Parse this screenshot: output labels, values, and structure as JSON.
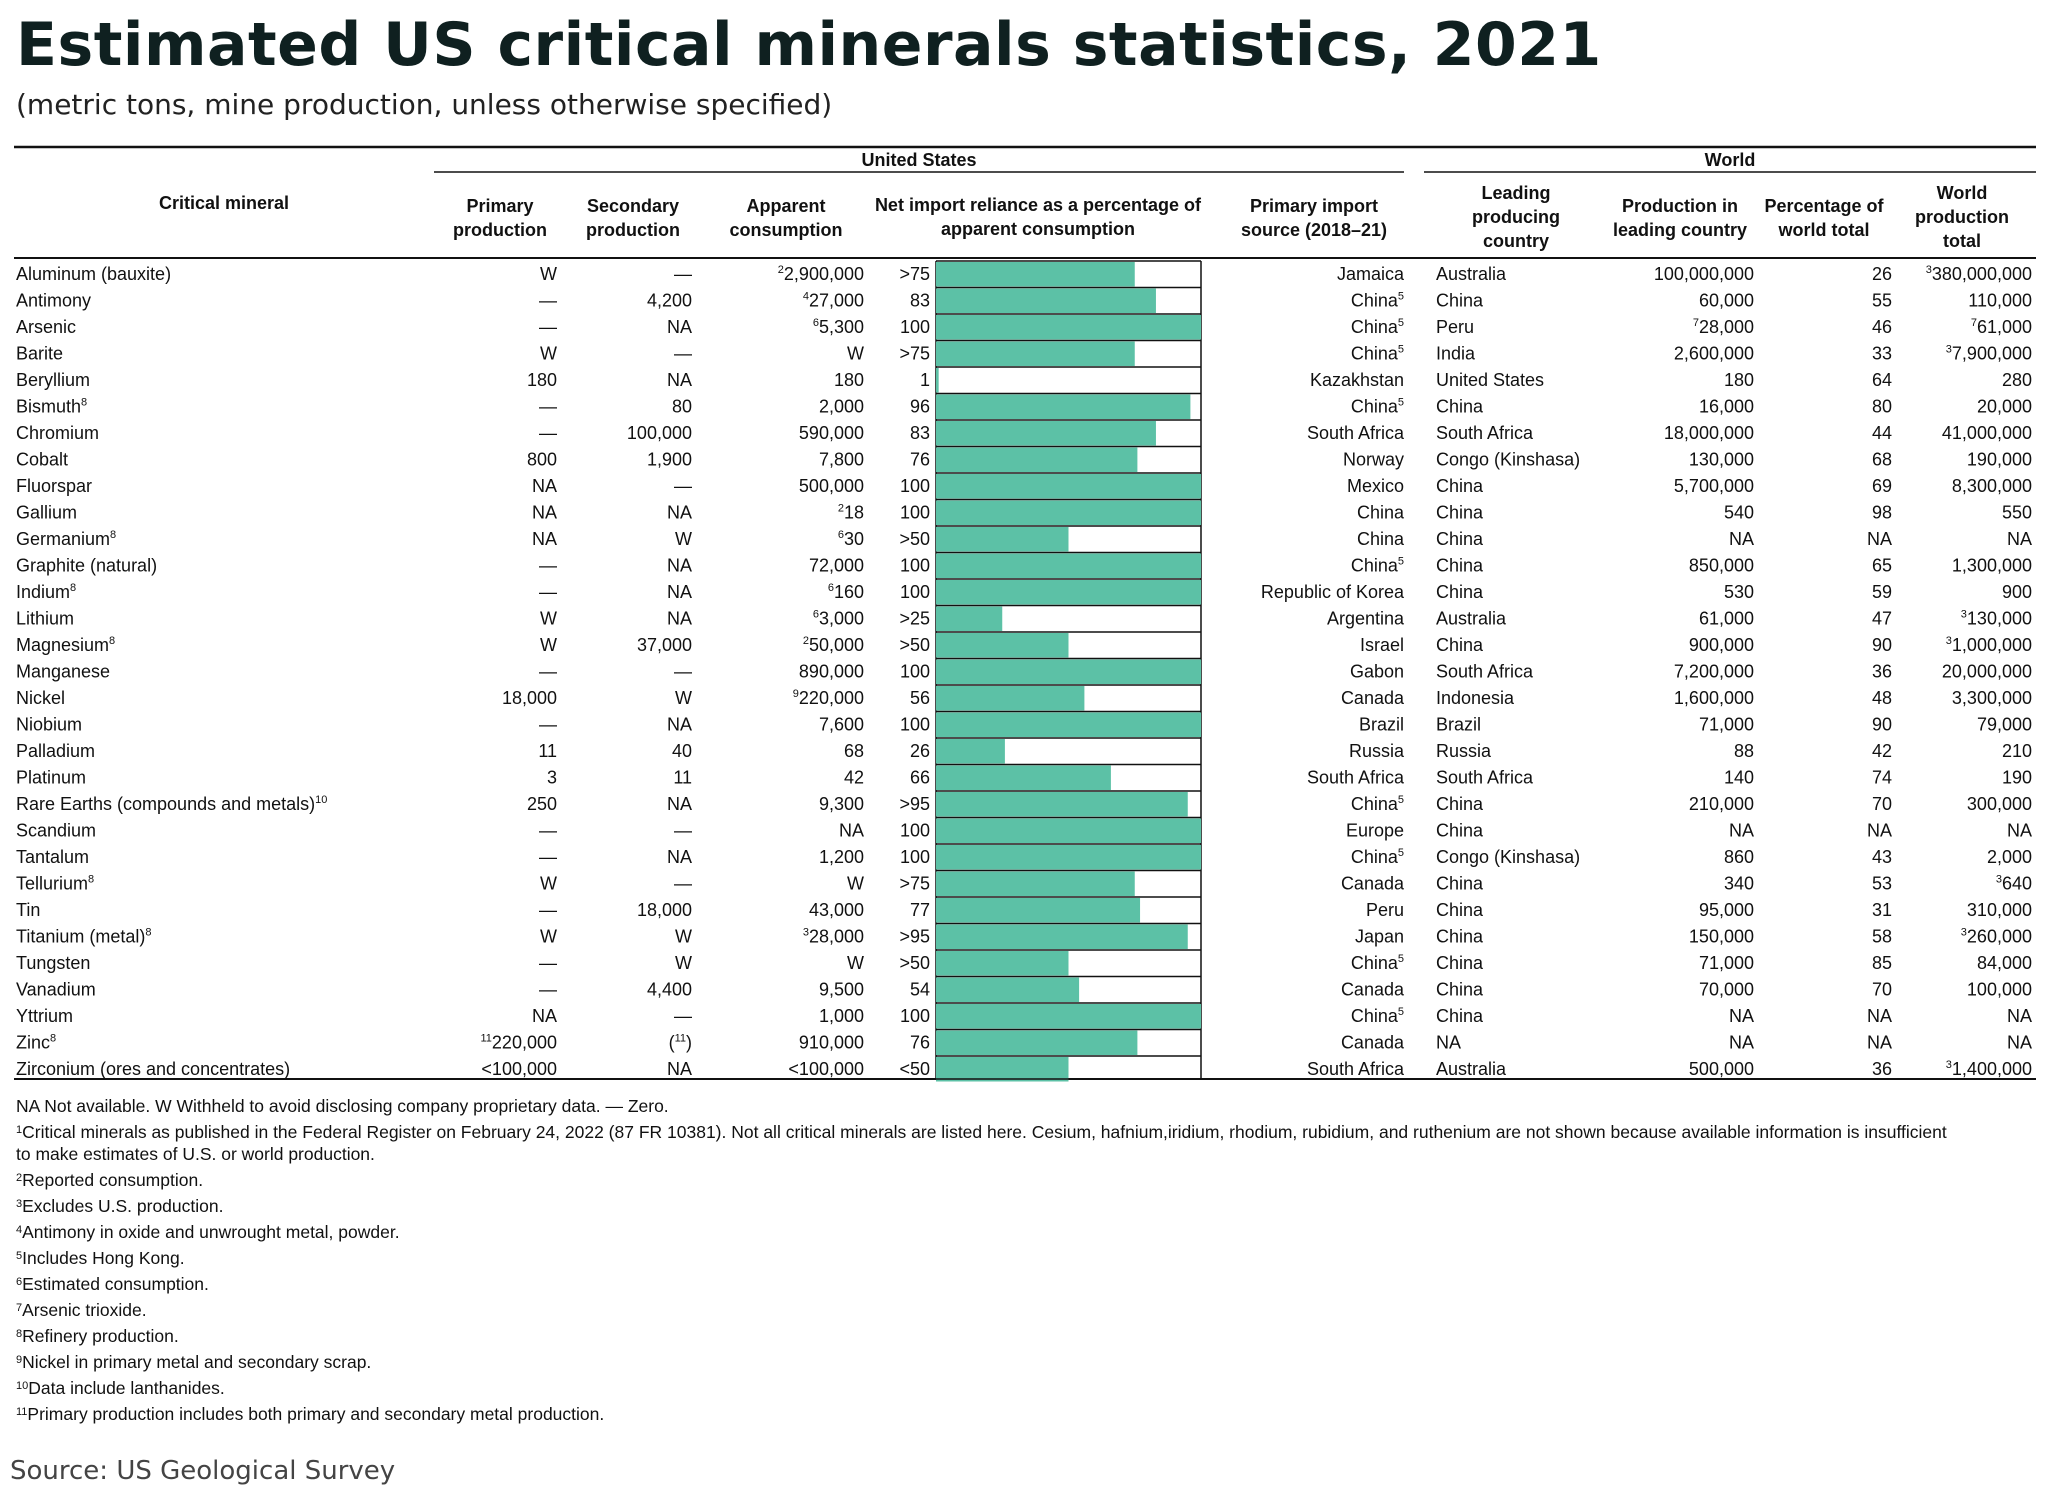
{
  "title": "Estimated US critical minerals statistics, 2021",
  "subtitle": "(metric tons, mine production, unless otherwise specified)",
  "source": "Source: US Geological Survey",
  "colors": {
    "bar": "#5cc1a6",
    "text": "#111111",
    "title": "#0f2020"
  },
  "headers": {
    "group_us": "United States",
    "group_world": "World",
    "mineral": "Critical mineral",
    "primary": [
      "Primary",
      "production"
    ],
    "secondary": [
      "Secondary",
      "production"
    ],
    "apparent": [
      "Apparent",
      "consumption"
    ],
    "nir": [
      "Net import reliance as a percentage of",
      "apparent consumption"
    ],
    "source": [
      "Primary import",
      "source  (2018–21)"
    ],
    "leading": [
      "Leading",
      "producing",
      "country"
    ],
    "prodlead": [
      "Production in",
      "leading country"
    ],
    "pct": [
      "Percentage of",
      "world total"
    ],
    "world": [
      "World",
      "production",
      "total"
    ]
  },
  "chart_data": {
    "type": "table",
    "bar_column": "Net import reliance as a percentage of apparent consumption",
    "bar_range": [
      0,
      100
    ],
    "columns": [
      "Critical mineral",
      "Primary production",
      "Secondary production",
      "Apparent consumption",
      "Net import reliance as a percentage of apparent consumption",
      "Primary import source (2018–21)",
      "Leading producing country",
      "Production in leading country",
      "Percentage of world total",
      "World production total"
    ],
    "rows": [
      {
        "mineral": "Aluminum (bauxite)",
        "primary": "W",
        "secondary": "—",
        "apparent": "2,900,000",
        "apparent_sup": "2",
        "nir": ">75",
        "nir_value": 75,
        "source": "Jamaica",
        "leading": "Australia",
        "prodlead": "100,000,000",
        "pct": "26",
        "world": "380,000,000",
        "world_sup": "3"
      },
      {
        "mineral": "Antimony",
        "primary": "—",
        "secondary": "4,200",
        "apparent": "27,000",
        "apparent_sup": "4",
        "nir": "83",
        "nir_value": 83,
        "source": "China",
        "source_sup": "5",
        "leading": "China",
        "prodlead": "60,000",
        "pct": "55",
        "world": "110,000"
      },
      {
        "mineral": "Arsenic",
        "primary": "—",
        "secondary": "NA",
        "apparent": "5,300",
        "apparent_sup": "6",
        "nir": "100",
        "nir_value": 100,
        "source": "China",
        "source_sup": "5",
        "leading": "Peru",
        "prodlead": "28,000",
        "prodlead_sup": "7",
        "pct": "46",
        "world": "61,000",
        "world_sup": "7"
      },
      {
        "mineral": "Barite",
        "primary": "W",
        "secondary": "—",
        "apparent": "W",
        "nir": ">75",
        "nir_value": 75,
        "source": "China",
        "source_sup": "5",
        "leading": "India",
        "prodlead": "2,600,000",
        "pct": "33",
        "world": "7,900,000",
        "world_sup": "3"
      },
      {
        "mineral": "Beryllium",
        "primary": "180",
        "secondary": "NA",
        "apparent": "180",
        "nir": "1",
        "nir_value": 1,
        "source": "Kazakhstan",
        "leading": "United States",
        "prodlead": "180",
        "pct": "64",
        "world": "280"
      },
      {
        "mineral": "Bismuth",
        "mineral_sup": "8",
        "primary": "—",
        "secondary": "80",
        "apparent": "2,000",
        "nir": "96",
        "nir_value": 96,
        "source": "China",
        "source_sup": "5",
        "leading": "China",
        "prodlead": "16,000",
        "pct": "80",
        "world": "20,000"
      },
      {
        "mineral": "Chromium",
        "primary": "—",
        "secondary": "100,000",
        "apparent": "590,000",
        "nir": "83",
        "nir_value": 83,
        "source": "South Africa",
        "leading": "South Africa",
        "prodlead": "18,000,000",
        "pct": "44",
        "world": "41,000,000"
      },
      {
        "mineral": "Cobalt",
        "primary": "800",
        "secondary": "1,900",
        "apparent": "7,800",
        "nir": "76",
        "nir_value": 76,
        "source": "Norway",
        "leading": "Congo (Kinshasa)",
        "prodlead": "130,000",
        "pct": "68",
        "world": "190,000"
      },
      {
        "mineral": "Fluorspar",
        "primary": "NA",
        "secondary": "—",
        "apparent": "500,000",
        "nir": "100",
        "nir_value": 100,
        "source": "Mexico",
        "leading": "China",
        "prodlead": "5,700,000",
        "pct": "69",
        "world": "8,300,000"
      },
      {
        "mineral": "Gallium",
        "primary": "NA",
        "secondary": "NA",
        "apparent": "18",
        "apparent_sup": "2",
        "nir": "100",
        "nir_value": 100,
        "source": "China",
        "leading": "China",
        "prodlead": "540",
        "pct": "98",
        "world": "550"
      },
      {
        "mineral": "Germanium",
        "mineral_sup": "8",
        "primary": "NA",
        "secondary": "W",
        "apparent": "30",
        "apparent_sup": "6",
        "nir": ">50",
        "nir_value": 50,
        "source": "China",
        "leading": "China",
        "prodlead": "NA",
        "pct": "NA",
        "world": "NA"
      },
      {
        "mineral": "Graphite (natural)",
        "primary": "—",
        "secondary": "NA",
        "apparent": "72,000",
        "nir": "100",
        "nir_value": 100,
        "source": "China",
        "source_sup": "5",
        "leading": "China",
        "prodlead": "850,000",
        "pct": "65",
        "world": "1,300,000"
      },
      {
        "mineral": "Indium",
        "mineral_sup": "8",
        "primary": "—",
        "secondary": "NA",
        "apparent": "160",
        "apparent_sup": "6",
        "nir": "100",
        "nir_value": 100,
        "source": "Republic of Korea",
        "leading": "China",
        "prodlead": "530",
        "pct": "59",
        "world": "900"
      },
      {
        "mineral": "Lithium",
        "primary": "W",
        "secondary": "NA",
        "apparent": "3,000",
        "apparent_sup": "6",
        "nir": ">25",
        "nir_value": 25,
        "source": "Argentina",
        "leading": "Australia",
        "prodlead": "61,000",
        "pct": "47",
        "world": "130,000",
        "world_sup": "3"
      },
      {
        "mineral": "Magnesium",
        "mineral_sup": "8",
        "primary": "W",
        "secondary": "37,000",
        "apparent": "50,000",
        "apparent_sup": "2",
        "nir": ">50",
        "nir_value": 50,
        "source": "Israel",
        "leading": "China",
        "prodlead": "900,000",
        "pct": "90",
        "world": "1,000,000",
        "world_sup": "3"
      },
      {
        "mineral": "Manganese",
        "primary": "—",
        "secondary": "—",
        "apparent": "890,000",
        "nir": "100",
        "nir_value": 100,
        "source": "Gabon",
        "leading": "South Africa",
        "prodlead": "7,200,000",
        "pct": "36",
        "world": "20,000,000"
      },
      {
        "mineral": "Nickel",
        "primary": "18,000",
        "secondary": "W",
        "apparent": "220,000",
        "apparent_sup": "9",
        "nir": "56",
        "nir_value": 56,
        "source": "Canada",
        "leading": "Indonesia",
        "prodlead": "1,600,000",
        "pct": "48",
        "world": "3,300,000"
      },
      {
        "mineral": "Niobium",
        "primary": "—",
        "secondary": "NA",
        "apparent": "7,600",
        "nir": "100",
        "nir_value": 100,
        "source": "Brazil",
        "leading": "Brazil",
        "prodlead": "71,000",
        "pct": "90",
        "world": "79,000"
      },
      {
        "mineral": "Palladium",
        "primary": "11",
        "secondary": "40",
        "apparent": "68",
        "nir": "26",
        "nir_value": 26,
        "source": "Russia",
        "leading": "Russia",
        "prodlead": "88",
        "pct": "42",
        "world": "210"
      },
      {
        "mineral": "Platinum",
        "primary": "3",
        "secondary": "11",
        "apparent": "42",
        "nir": "66",
        "nir_value": 66,
        "source": "South Africa",
        "leading": "South Africa",
        "prodlead": "140",
        "pct": "74",
        "world": "190"
      },
      {
        "mineral": "Rare Earths (compounds and metals)",
        "mineral_sup": "10",
        "primary": "250",
        "secondary": "NA",
        "apparent": "9,300",
        "nir": ">95",
        "nir_value": 95,
        "source": "China",
        "source_sup": "5",
        "leading": "China",
        "prodlead": "210,000",
        "pct": "70",
        "world": "300,000"
      },
      {
        "mineral": "Scandium",
        "primary": "—",
        "secondary": "—",
        "apparent": "NA",
        "nir": "100",
        "nir_value": 100,
        "source": "Europe",
        "leading": "China",
        "prodlead": "NA",
        "pct": "NA",
        "world": "NA"
      },
      {
        "mineral": "Tantalum",
        "primary": "—",
        "secondary": "NA",
        "apparent": "1,200",
        "nir": "100",
        "nir_value": 100,
        "source": "China",
        "source_sup": "5",
        "leading": "Congo (Kinshasa)",
        "prodlead": "860",
        "pct": "43",
        "world": "2,000"
      },
      {
        "mineral": "Tellurium",
        "mineral_sup": "8",
        "primary": "W",
        "secondary": "—",
        "apparent": "W",
        "nir": ">75",
        "nir_value": 75,
        "source": "Canada",
        "leading": "China",
        "prodlead": "340",
        "pct": "53",
        "world": "640",
        "world_sup": "3"
      },
      {
        "mineral": "Tin",
        "primary": "—",
        "secondary": "18,000",
        "apparent": "43,000",
        "nir": "77",
        "nir_value": 77,
        "source": "Peru",
        "leading": "China",
        "prodlead": "95,000",
        "pct": "31",
        "world": "310,000"
      },
      {
        "mineral": "Titanium (metal)",
        "mineral_sup": "8",
        "primary": "W",
        "secondary": "W",
        "apparent": "28,000",
        "apparent_sup": "3",
        "nir": ">95",
        "nir_value": 95,
        "source": "Japan",
        "leading": "China",
        "prodlead": "150,000",
        "pct": "58",
        "world": "260,000",
        "world_sup": "3"
      },
      {
        "mineral": "Tungsten",
        "primary": "—",
        "secondary": "W",
        "apparent": "W",
        "nir": ">50",
        "nir_value": 50,
        "source": "China",
        "source_sup": "5",
        "leading": "China",
        "prodlead": "71,000",
        "pct": "85",
        "world": "84,000"
      },
      {
        "mineral": "Vanadium",
        "primary": "—",
        "secondary": "4,400",
        "apparent": "9,500",
        "nir": "54",
        "nir_value": 54,
        "source": "Canada",
        "leading": "China",
        "prodlead": "70,000",
        "pct": "70",
        "world": "100,000"
      },
      {
        "mineral": "Yttrium",
        "primary": "NA",
        "secondary": "—",
        "apparent": "1,000",
        "nir": "100",
        "nir_value": 100,
        "source": "China",
        "source_sup": "5",
        "leading": "China",
        "prodlead": "NA",
        "pct": "NA",
        "world": "NA"
      },
      {
        "mineral": "Zinc",
        "mineral_sup": "8",
        "primary": "220,000",
        "primary_sup": "11",
        "secondary": "(11)",
        "apparent": "910,000",
        "nir": "76",
        "nir_value": 76,
        "source": "Canada",
        "leading": "NA",
        "prodlead": "NA",
        "pct": "NA",
        "world": "NA"
      },
      {
        "mineral": "Zirconium (ores and concentrates)",
        "primary": "<100,000",
        "secondary": "NA",
        "apparent": "<100,000",
        "nir": "<50",
        "nir_value": 50,
        "source": "South Africa",
        "leading": "Australia",
        "prodlead": "500,000",
        "pct": "36",
        "world": "1,400,000",
        "world_sup": "3"
      }
    ]
  },
  "notes": {
    "legend": "NA Not available. W Withheld to avoid disclosing company proprietary data.  — Zero.",
    "items": [
      {
        "num": "1",
        "text": "Critical minerals as published in the Federal Register on February 24, 2022 (87 FR 10381). Not all critical minerals are listed here. Cesium, hafnium,iridium, rhodium, rubidium, and ruthenium are not shown because available information is insufficient"
      },
      {
        "num": "",
        "text": "to make estimates of U.S. or world production."
      },
      {
        "num": "2",
        "text": "Reported consumption."
      },
      {
        "num": "3",
        "text": "Excludes U.S. production."
      },
      {
        "num": "4",
        "text": "Antimony in oxide and unwrought metal, powder."
      },
      {
        "num": "5",
        "text": "Includes Hong Kong."
      },
      {
        "num": "6",
        "text": "Estimated consumption."
      },
      {
        "num": "7",
        "text": "Arsenic trioxide."
      },
      {
        "num": "8",
        "text": "Refinery production."
      },
      {
        "num": "9",
        "text": "Nickel in primary metal and secondary scrap."
      },
      {
        "num": "10",
        "text": "Data include lanthanides."
      },
      {
        "num": "11",
        "text": "Primary production includes both primary and secondary metal production."
      }
    ]
  }
}
